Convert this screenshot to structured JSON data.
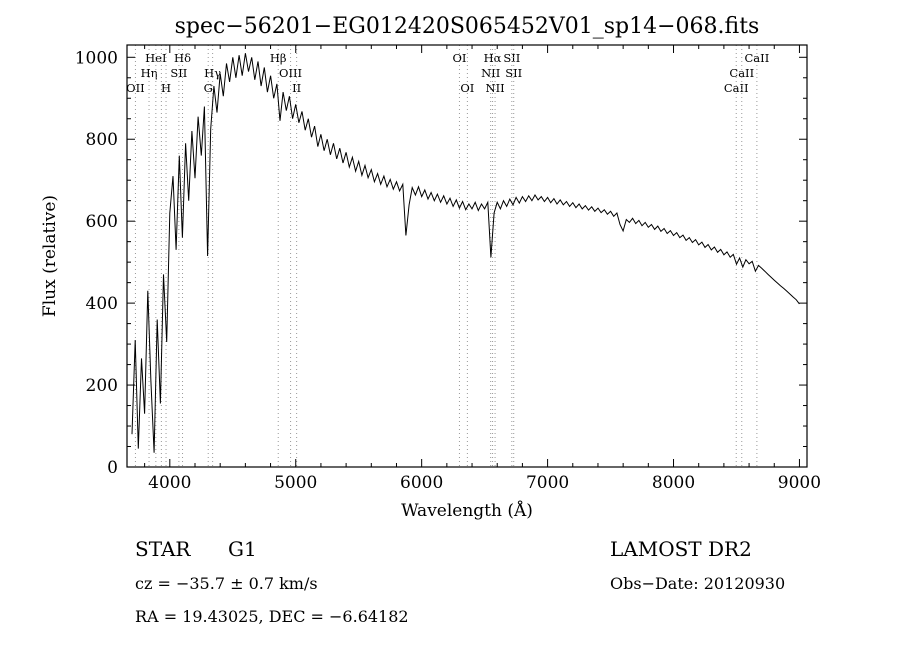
{
  "chart_data": {
    "type": "line",
    "title": "spec−56201−EG012420S065452V01_sp14−068.fits",
    "xlabel": "Wavelength (Å)",
    "ylabel": "Flux (relative)",
    "xlim": [
      3660,
      9060
    ],
    "ylim": [
      0,
      1030
    ],
    "x_ticks": [
      4000,
      5000,
      6000,
      7000,
      8000,
      9000
    ],
    "y_ticks": [
      0,
      200,
      400,
      600,
      800,
      1000
    ],
    "x_minor_step": 200,
    "y_minor_step": 50,
    "grid": false,
    "legend": "none",
    "line_color": "#000000",
    "marker_line_color": "#999999",
    "wavelength_start": 3700,
    "wavelength_step": 25,
    "flux": [
      80,
      310,
      45,
      265,
      130,
      430,
      210,
      35,
      360,
      155,
      470,
      305,
      620,
      710,
      530,
      760,
      560,
      790,
      650,
      820,
      705,
      855,
      760,
      880,
      515,
      825,
      930,
      865,
      960,
      905,
      985,
      940,
      1000,
      950,
      1005,
      955,
      1010,
      965,
      1000,
      945,
      990,
      930,
      975,
      915,
      955,
      900,
      935,
      845,
      915,
      870,
      905,
      850,
      885,
      840,
      868,
      822,
      850,
      805,
      832,
      782,
      812,
      772,
      800,
      762,
      790,
      752,
      778,
      742,
      768,
      732,
      756,
      722,
      746,
      712,
      736,
      706,
      726,
      696,
      716,
      690,
      710,
      684,
      702,
      678,
      696,
      674,
      690,
      565,
      640,
      682,
      664,
      684,
      660,
      676,
      654,
      670,
      650,
      666,
      646,
      662,
      642,
      656,
      636,
      652,
      632,
      648,
      628,
      642,
      630,
      646,
      626,
      642,
      630,
      646,
      512,
      620,
      646,
      630,
      650,
      636,
      654,
      640,
      658,
      644,
      660,
      648,
      662,
      650,
      664,
      652,
      660,
      648,
      658,
      645,
      655,
      642,
      652,
      640,
      648,
      636,
      645,
      633,
      642,
      630,
      638,
      627,
      635,
      624,
      632,
      621,
      628,
      617,
      624,
      612,
      620,
      592,
      576,
      604,
      597,
      607,
      594,
      602,
      589,
      597,
      585,
      592,
      580,
      588,
      575,
      582,
      570,
      577,
      565,
      572,
      560,
      566,
      553,
      560,
      548,
      555,
      542,
      549,
      536,
      543,
      530,
      537,
      524,
      531,
      518,
      525,
      512,
      519,
      495,
      510,
      488,
      506,
      496,
      502,
      478,
      492,
      485,
      478,
      470,
      463,
      456,
      449,
      442,
      436,
      429,
      422,
      415,
      408,
      398
    ],
    "line_markers": [
      {
        "wavelength": 3727,
        "label": "OII",
        "row": 2
      },
      {
        "wavelength": 3835,
        "label": "Hη",
        "row": 1
      },
      {
        "wavelength": 3889,
        "label": "HeI",
        "row": 0
      },
      {
        "wavelength": 3933,
        "label": "",
        "row": 2
      },
      {
        "wavelength": 3970,
        "label": "H",
        "row": 2
      },
      {
        "wavelength": 4072,
        "label": "SII",
        "row": 1
      },
      {
        "wavelength": 4101,
        "label": "Hδ",
        "row": 0
      },
      {
        "wavelength": 4305,
        "label": "G",
        "row": 2
      },
      {
        "wavelength": 4340,
        "label": "Hγ",
        "row": 1
      },
      {
        "wavelength": 4861,
        "label": "Hβ",
        "row": 0
      },
      {
        "wavelength": 4959,
        "label": "OIII",
        "row": 1
      },
      {
        "wavelength": 5007,
        "label": "II",
        "row": 2
      },
      {
        "wavelength": 6300,
        "label": "OI",
        "row": 0
      },
      {
        "wavelength": 6363,
        "label": "OI",
        "row": 2
      },
      {
        "wavelength": 6548,
        "label": "NII",
        "row": 1
      },
      {
        "wavelength": 6563,
        "label": "Hα",
        "row": 0
      },
      {
        "wavelength": 6583,
        "label": "NII",
        "row": 2
      },
      {
        "wavelength": 6716,
        "label": "SII",
        "row": 0
      },
      {
        "wavelength": 6731,
        "label": "SII",
        "row": 1
      },
      {
        "wavelength": 8498,
        "label": "CaII",
        "row": 2
      },
      {
        "wavelength": 8542,
        "label": "CaII",
        "row": 1
      },
      {
        "wavelength": 8662,
        "label": "CaII",
        "row": 0
      }
    ]
  },
  "footer": {
    "class_label": "STAR",
    "subclass": "G1",
    "survey": "LAMOST DR2",
    "cz": "cz = −35.7 ± 0.7 km/s",
    "obs_date": "Obs−Date: 20120930",
    "ra_dec": "RA = 19.43025, DEC = −6.64182"
  }
}
